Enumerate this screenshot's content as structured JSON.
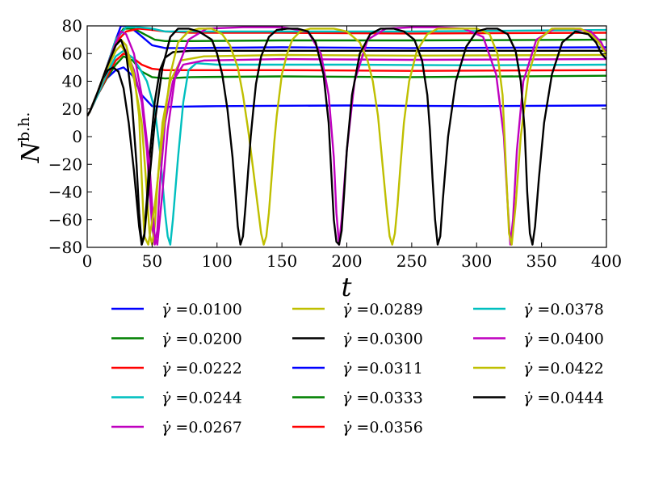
{
  "chart_data": {
    "type": "line",
    "xlabel": "t",
    "ylabel": "N",
    "ylabel_superscript": "b.h.",
    "xlim": [
      0,
      400
    ],
    "ylim": [
      -80,
      80
    ],
    "xticks": [
      0,
      50,
      100,
      150,
      200,
      250,
      300,
      350,
      400
    ],
    "yticks": [
      80,
      60,
      40,
      20,
      0,
      -20,
      -40,
      -60,
      -80
    ],
    "xtick_labels": [
      "0",
      "50",
      "100",
      "150",
      "200",
      "250",
      "300",
      "350",
      "400"
    ],
    "ytick_labels": [
      "80",
      "60",
      "40",
      "20",
      "0",
      "−20",
      "−40",
      "−60",
      "−80"
    ],
    "grid": false,
    "legend_placement": "below",
    "legend_prefix": "γ̇ =",
    "series": [
      {
        "name": "0.0100",
        "color": "#0000ff",
        "x": [
          0,
          2,
          8,
          15,
          22,
          28,
          35,
          42,
          50,
          60,
          100,
          200,
          300,
          400
        ],
        "y": [
          15,
          18,
          30,
          42,
          48,
          50,
          44,
          30,
          22,
          21.5,
          22,
          22.5,
          22,
          22.5
        ]
      },
      {
        "name": "0.0200",
        "color": "#008000",
        "x": [
          0,
          2,
          8,
          15,
          22,
          28,
          35,
          42,
          50,
          60,
          80,
          150,
          250,
          400
        ],
        "y": [
          15,
          18,
          30,
          42,
          52,
          58,
          55,
          47,
          43,
          42,
          43,
          43.5,
          43,
          44
        ]
      },
      {
        "name": "0.0222",
        "color": "#ff0000",
        "x": [
          0,
          2,
          8,
          15,
          22,
          28,
          35,
          42,
          50,
          60,
          80,
          150,
          250,
          400
        ],
        "y": [
          15,
          18,
          30,
          43,
          55,
          60,
          57,
          52,
          49,
          48,
          48,
          48,
          47.5,
          48
        ]
      },
      {
        "name": "0.0244",
        "color": "#00bfbf",
        "x": [
          0,
          2,
          8,
          15,
          22,
          28,
          35,
          40,
          46,
          52,
          56,
          60,
          62,
          64,
          66,
          70,
          74,
          78,
          84,
          100,
          200,
          300,
          400
        ],
        "y": [
          15,
          18,
          30,
          45,
          58,
          62,
          57,
          50,
          40,
          20,
          -10,
          -55,
          -72,
          -78,
          -60,
          -15,
          25,
          48,
          53,
          52,
          52,
          51.5,
          52
        ]
      },
      {
        "name": "0.0267",
        "color": "#bf00bf",
        "x": [
          0,
          2,
          8,
          15,
          22,
          26,
          30,
          36,
          42,
          46,
          50,
          52,
          54,
          56,
          60,
          66,
          74,
          90,
          150,
          250,
          400
        ],
        "y": [
          15,
          18,
          32,
          48,
          62,
          66,
          62,
          48,
          25,
          -10,
          -65,
          -78,
          -68,
          -35,
          10,
          40,
          52,
          55,
          56,
          55.5,
          56
        ]
      },
      {
        "name": "0.0289",
        "color": "#bfbf00",
        "x": [
          0,
          2,
          8,
          15,
          22,
          26,
          30,
          36,
          42,
          46,
          48,
          50,
          52,
          54,
          58,
          64,
          72,
          90,
          150,
          250,
          400
        ],
        "y": [
          15,
          18,
          32,
          48,
          62,
          66,
          60,
          42,
          10,
          -40,
          -70,
          -78,
          -65,
          -35,
          10,
          40,
          55,
          58,
          59,
          58.5,
          59
        ]
      },
      {
        "name": "0.0300",
        "color": "#000000",
        "x": [
          0,
          2,
          8,
          12,
          16,
          20,
          24,
          28,
          32,
          36,
          40,
          42,
          44,
          46,
          48,
          52,
          56,
          60,
          66,
          80,
          150,
          250,
          400
        ],
        "y": [
          15,
          18,
          32,
          42,
          48,
          50,
          47,
          35,
          10,
          -25,
          -65,
          -78,
          -70,
          -45,
          -15,
          25,
          48,
          57,
          61,
          62,
          62,
          62,
          62
        ]
      },
      {
        "name": "0.0311",
        "color": "#0000ff",
        "x": [
          0,
          2,
          8,
          15,
          22,
          26,
          32,
          40,
          50,
          60,
          80,
          150,
          250,
          400
        ],
        "y": [
          15,
          18,
          32,
          50,
          70,
          80,
          80,
          74,
          66,
          64,
          64,
          64.5,
          64,
          64.5
        ]
      },
      {
        "name": "0.0333",
        "color": "#008000",
        "x": [
          0,
          2,
          8,
          15,
          22,
          28,
          36,
          44,
          52,
          60,
          80,
          150,
          250,
          400
        ],
        "y": [
          15,
          18,
          32,
          50,
          70,
          78,
          78,
          74,
          70,
          69,
          69,
          69.5,
          69.5,
          70
        ]
      },
      {
        "name": "0.0356",
        "color": "#ff0000",
        "x": [
          0,
          2,
          8,
          15,
          22,
          30,
          40,
          50,
          60,
          80,
          150,
          250,
          400
        ],
        "y": [
          15,
          18,
          32,
          50,
          68,
          76,
          78,
          77,
          76,
          75,
          75,
          74.5,
          75
        ]
      },
      {
        "name": "0.0378",
        "color": "#00bfbf",
        "x": [
          0,
          2,
          8,
          15,
          22,
          30,
          40,
          50,
          60,
          70,
          150,
          250,
          400
        ],
        "y": [
          15,
          18,
          32,
          50,
          70,
          79,
          79,
          78,
          76,
          76,
          76,
          76,
          77
        ]
      },
      {
        "name": "0.0400",
        "color": "#bf00bf",
        "x": [
          0,
          2,
          8,
          15,
          22,
          26,
          30,
          36,
          42,
          48,
          50,
          52,
          54,
          58,
          62,
          68,
          78,
          92,
          120,
          150,
          170,
          180,
          186,
          190,
          192,
          194,
          196,
          200,
          206,
          216,
          230,
          250,
          270,
          290,
          305,
          315,
          321,
          324,
          326,
          328,
          331,
          336,
          346,
          360,
          375,
          388,
          396,
          400
        ],
        "y": [
          15,
          18,
          32,
          50,
          68,
          76,
          74,
          60,
          30,
          -20,
          -50,
          -72,
          -78,
          -40,
          5,
          45,
          70,
          78,
          79,
          79,
          76,
          60,
          30,
          -15,
          -55,
          -78,
          -60,
          -10,
          40,
          70,
          78,
          79,
          79,
          78,
          72,
          45,
          0,
          -50,
          -78,
          -60,
          -10,
          40,
          70,
          78,
          78,
          76,
          68,
          60
        ]
      },
      {
        "name": "0.0422",
        "color": "#bfbf00",
        "x": [
          0,
          2,
          8,
          15,
          22,
          26,
          30,
          36,
          40,
          42,
          44,
          47,
          52,
          58,
          64,
          70,
          78,
          86,
          96,
          104,
          110,
          116,
          120,
          124,
          128,
          132,
          134,
          136,
          138,
          140,
          142,
          144,
          146,
          148,
          150,
          154,
          158,
          164,
          172,
          180,
          190,
          200,
          210,
          216,
          220,
          224,
          228,
          231,
          233,
          235,
          237,
          239,
          241,
          244,
          248,
          254,
          262,
          270,
          280,
          290,
          300,
          310,
          316,
          320,
          323,
          325,
          327,
          330,
          334,
          340,
          348,
          358,
          370,
          380,
          388,
          394,
          398,
          400
        ],
        "y": [
          15,
          18,
          32,
          50,
          66,
          70,
          66,
          45,
          15,
          -30,
          -72,
          -78,
          -50,
          0,
          45,
          68,
          76,
          78,
          78,
          74,
          66,
          50,
          30,
          5,
          -25,
          -55,
          -70,
          -78,
          -72,
          -55,
          -30,
          -5,
          15,
          30,
          45,
          60,
          70,
          76,
          78,
          78,
          78,
          76,
          68,
          55,
          40,
          15,
          -25,
          -55,
          -72,
          -78,
          -70,
          -50,
          -25,
          10,
          40,
          62,
          74,
          78,
          78,
          78,
          78,
          74,
          60,
          30,
          -30,
          -70,
          -78,
          -50,
          0,
          45,
          70,
          78,
          78,
          78,
          74,
          68,
          62,
          60
        ]
      },
      {
        "name": "0.0444",
        "color": "#000000",
        "x": [
          0,
          2,
          8,
          15,
          22,
          26,
          30,
          34,
          38,
          40,
          42,
          44,
          47,
          52,
          58,
          64,
          70,
          78,
          86,
          96,
          100,
          104,
          108,
          112,
          114,
          116,
          118,
          120,
          122,
          124,
          126,
          128,
          130,
          134,
          140,
          146,
          154,
          162,
          170,
          176,
          182,
          186,
          188,
          190,
          192,
          194,
          196,
          198,
          200,
          204,
          210,
          218,
          226,
          236,
          244,
          252,
          258,
          262,
          264,
          266,
          268,
          270,
          272,
          274,
          278,
          284,
          292,
          300,
          308,
          316,
          324,
          330,
          334,
          337,
          339,
          341,
          343,
          345,
          348,
          352,
          358,
          366,
          376,
          386,
          392,
          396,
          400
        ],
        "y": [
          15,
          18,
          32,
          50,
          66,
          70,
          60,
          30,
          -20,
          -55,
          -78,
          -72,
          -40,
          10,
          50,
          72,
          78,
          78,
          76,
          70,
          60,
          45,
          20,
          -15,
          -40,
          -65,
          -78,
          -72,
          -50,
          -25,
          0,
          20,
          38,
          58,
          72,
          77,
          78,
          78,
          76,
          68,
          45,
          10,
          -25,
          -60,
          -76,
          -78,
          -68,
          -40,
          -10,
          30,
          60,
          74,
          78,
          78,
          76,
          70,
          55,
          30,
          5,
          -30,
          -60,
          -78,
          -72,
          -45,
          0,
          40,
          65,
          76,
          78,
          78,
          74,
          62,
          40,
          5,
          -40,
          -70,
          -78,
          -65,
          -30,
          10,
          45,
          68,
          76,
          74,
          68,
          60,
          56
        ]
      }
    ]
  }
}
